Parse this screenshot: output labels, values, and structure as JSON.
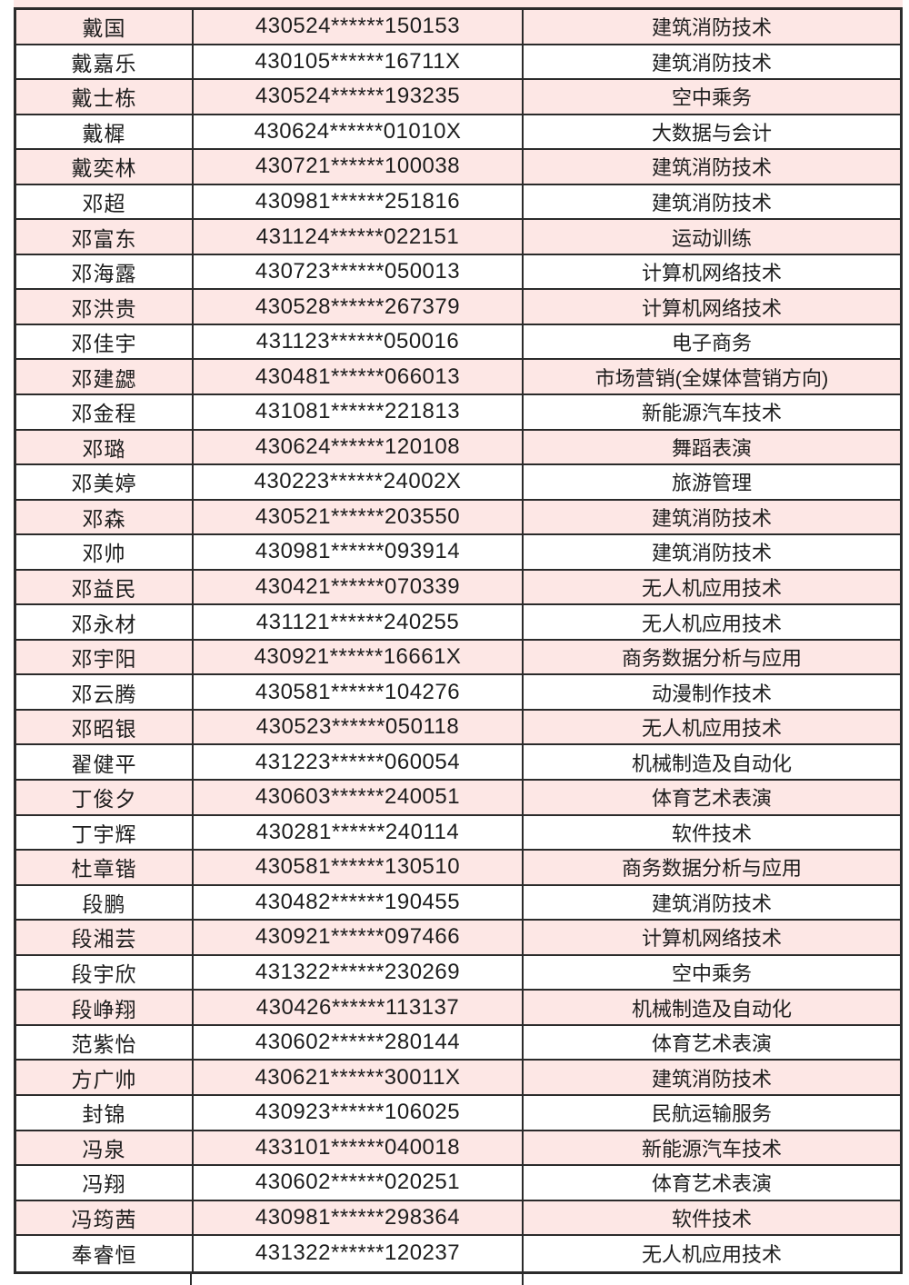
{
  "colors": {
    "pink_row": "#fde7e5",
    "white_row": "#ffffff",
    "border": "#2b2b2b",
    "text": "#1d1d1d"
  },
  "table": {
    "rows": [
      {
        "name": "戴国",
        "id": "430524******150153",
        "major": "建筑消防技术"
      },
      {
        "name": "戴嘉乐",
        "id": "430105******16711X",
        "major": "建筑消防技术"
      },
      {
        "name": "戴士栋",
        "id": "430524******193235",
        "major": "空中乘务"
      },
      {
        "name": "戴樨",
        "id": "430624******01010X",
        "major": "大数据与会计"
      },
      {
        "name": "戴奕林",
        "id": "430721******100038",
        "major": "建筑消防技术"
      },
      {
        "name": "邓超",
        "id": "430981******251816",
        "major": "建筑消防技术"
      },
      {
        "name": "邓富东",
        "id": "431124******022151",
        "major": "运动训练"
      },
      {
        "name": "邓海露",
        "id": "430723******050013",
        "major": "计算机网络技术"
      },
      {
        "name": "邓洪贵",
        "id": "430528******267379",
        "major": "计算机网络技术"
      },
      {
        "name": "邓佳宇",
        "id": "431123******050016",
        "major": "电子商务"
      },
      {
        "name": "邓建勰",
        "id": "430481******066013",
        "major": "市场营销(全媒体营销方向)"
      },
      {
        "name": "邓金程",
        "id": "431081******221813",
        "major": "新能源汽车技术"
      },
      {
        "name": "邓璐",
        "id": "430624******120108",
        "major": "舞蹈表演"
      },
      {
        "name": "邓美婷",
        "id": "430223******24002X",
        "major": "旅游管理"
      },
      {
        "name": "邓森",
        "id": "430521******203550",
        "major": "建筑消防技术"
      },
      {
        "name": "邓帅",
        "id": "430981******093914",
        "major": "建筑消防技术"
      },
      {
        "name": "邓益民",
        "id": "430421******070339",
        "major": "无人机应用技术"
      },
      {
        "name": "邓永材",
        "id": "431121******240255",
        "major": "无人机应用技术"
      },
      {
        "name": "邓宇阳",
        "id": "430921******16661X",
        "major": "商务数据分析与应用"
      },
      {
        "name": "邓云腾",
        "id": "430581******104276",
        "major": "动漫制作技术"
      },
      {
        "name": "邓昭银",
        "id": "430523******050118",
        "major": "无人机应用技术"
      },
      {
        "name": "翟健平",
        "id": "431223******060054",
        "major": "机械制造及自动化"
      },
      {
        "name": "丁俊夕",
        "id": "430603******240051",
        "major": "体育艺术表演"
      },
      {
        "name": "丁宇辉",
        "id": "430281******240114",
        "major": "软件技术"
      },
      {
        "name": "杜章锴",
        "id": "430581******130510",
        "major": "商务数据分析与应用"
      },
      {
        "name": "段鹏",
        "id": "430482******190455",
        "major": "建筑消防技术"
      },
      {
        "name": "段湘芸",
        "id": "430921******097466",
        "major": "计算机网络技术"
      },
      {
        "name": "段宇欣",
        "id": "431322******230269",
        "major": "空中乘务"
      },
      {
        "name": "段峥翔",
        "id": "430426******113137",
        "major": "机械制造及自动化"
      },
      {
        "name": "范紫怡",
        "id": "430602******280144",
        "major": "体育艺术表演"
      },
      {
        "name": "方广帅",
        "id": "430621******30011X",
        "major": "建筑消防技术"
      },
      {
        "name": "封锦",
        "id": "430923******106025",
        "major": "民航运输服务"
      },
      {
        "name": "冯泉",
        "id": "433101******040018",
        "major": "新能源汽车技术"
      },
      {
        "name": "冯翔",
        "id": "430602******020251",
        "major": "体育艺术表演"
      },
      {
        "name": "冯筠茜",
        "id": "430981******298364",
        "major": "软件技术"
      },
      {
        "name": "奉睿恒",
        "id": "431322******120237",
        "major": "无人机应用技术"
      }
    ]
  }
}
